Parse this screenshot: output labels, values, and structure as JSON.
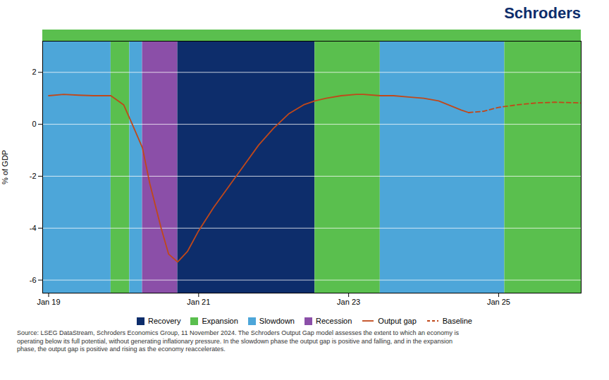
{
  "chart_data": {
    "type": "line",
    "title": "Schroders",
    "title_color": "#0d2d6b",
    "ylabel": "% of GDP",
    "xlim": [
      2018.92,
      2026.1
    ],
    "xticks": [
      {
        "value": 2019.0,
        "label": "Jan 19"
      },
      {
        "value": 2021.0,
        "label": "Jan 21"
      },
      {
        "value": 2023.0,
        "label": "Jan 23"
      },
      {
        "value": 2025.0,
        "label": "Jan 25"
      }
    ],
    "ylim": [
      -6.5,
      3.2
    ],
    "yticks": [
      -6,
      -4,
      -2,
      0,
      2
    ],
    "grid": true,
    "legend": "bottom",
    "phases": [
      {
        "name": "Recovery",
        "color": "#0d2d6b"
      },
      {
        "name": "Expansion",
        "color": "#5abf4e"
      },
      {
        "name": "Slowdown",
        "color": "#4da6d9"
      },
      {
        "name": "Recession",
        "color": "#8b4fa8"
      }
    ],
    "regions": [
      {
        "phase": "Slowdown",
        "xstart": 2018.92,
        "xend": 2019.83
      },
      {
        "phase": "Expansion",
        "xstart": 2019.83,
        "xend": 2020.08
      },
      {
        "phase": "Slowdown",
        "xstart": 2020.08,
        "xend": 2020.25
      },
      {
        "phase": "Recession",
        "xstart": 2020.25,
        "xend": 2020.72
      },
      {
        "phase": "Recovery",
        "xstart": 2020.72,
        "xend": 2022.55
      },
      {
        "phase": "Expansion",
        "xstart": 2022.55,
        "xend": 2023.42
      },
      {
        "phase": "Slowdown",
        "xstart": 2023.42,
        "xend": 2025.08
      },
      {
        "phase": "Expansion",
        "xstart": 2025.08,
        "xend": 2026.1
      }
    ],
    "top_bar_regions": [
      {
        "color": "#5abf4e",
        "xstart": 2018.92,
        "xend": 2026.1
      }
    ],
    "series": [
      {
        "name": "Output gap",
        "color": "#c0481a",
        "line_style": "solid",
        "x": [
          2019.0,
          2019.2,
          2019.4,
          2019.6,
          2019.83,
          2020.0,
          2020.1,
          2020.25,
          2020.35,
          2020.5,
          2020.6,
          2020.72,
          2020.85,
          2021.0,
          2021.2,
          2021.4,
          2021.6,
          2021.8,
          2022.0,
          2022.2,
          2022.4,
          2022.55,
          2022.7,
          2022.9,
          2023.1,
          2023.2,
          2023.42,
          2023.6,
          2023.8,
          2024.0,
          2024.2,
          2024.5,
          2024.6
        ],
        "values": [
          1.1,
          1.15,
          1.12,
          1.1,
          1.1,
          0.75,
          0.1,
          -0.9,
          -2.3,
          -4.0,
          -5.0,
          -5.3,
          -4.9,
          -4.1,
          -3.2,
          -2.4,
          -1.6,
          -0.8,
          -0.15,
          0.4,
          0.75,
          0.9,
          1.0,
          1.1,
          1.15,
          1.15,
          1.1,
          1.1,
          1.05,
          1.0,
          0.9,
          0.55,
          0.45
        ]
      },
      {
        "name": "Baseline",
        "color": "#c0481a",
        "line_style": "dashed",
        "x": [
          2024.6,
          2024.8,
          2025.0,
          2025.25,
          2025.5,
          2025.75,
          2026.0,
          2026.1
        ],
        "values": [
          0.45,
          0.5,
          0.65,
          0.75,
          0.82,
          0.85,
          0.83,
          0.82
        ]
      }
    ],
    "source": "Source: LSEG DataStream, Schroders Economics Group, 11 November 2024. The Schroders Output Gap model assesses the extent to which an economy is\noperating below its full potential, without generating inflationary pressure. In the slowdown phase the output gap is positive and falling, and in the expansion\nphase, the output gap is positive and rising as the economy reaccelerates."
  }
}
